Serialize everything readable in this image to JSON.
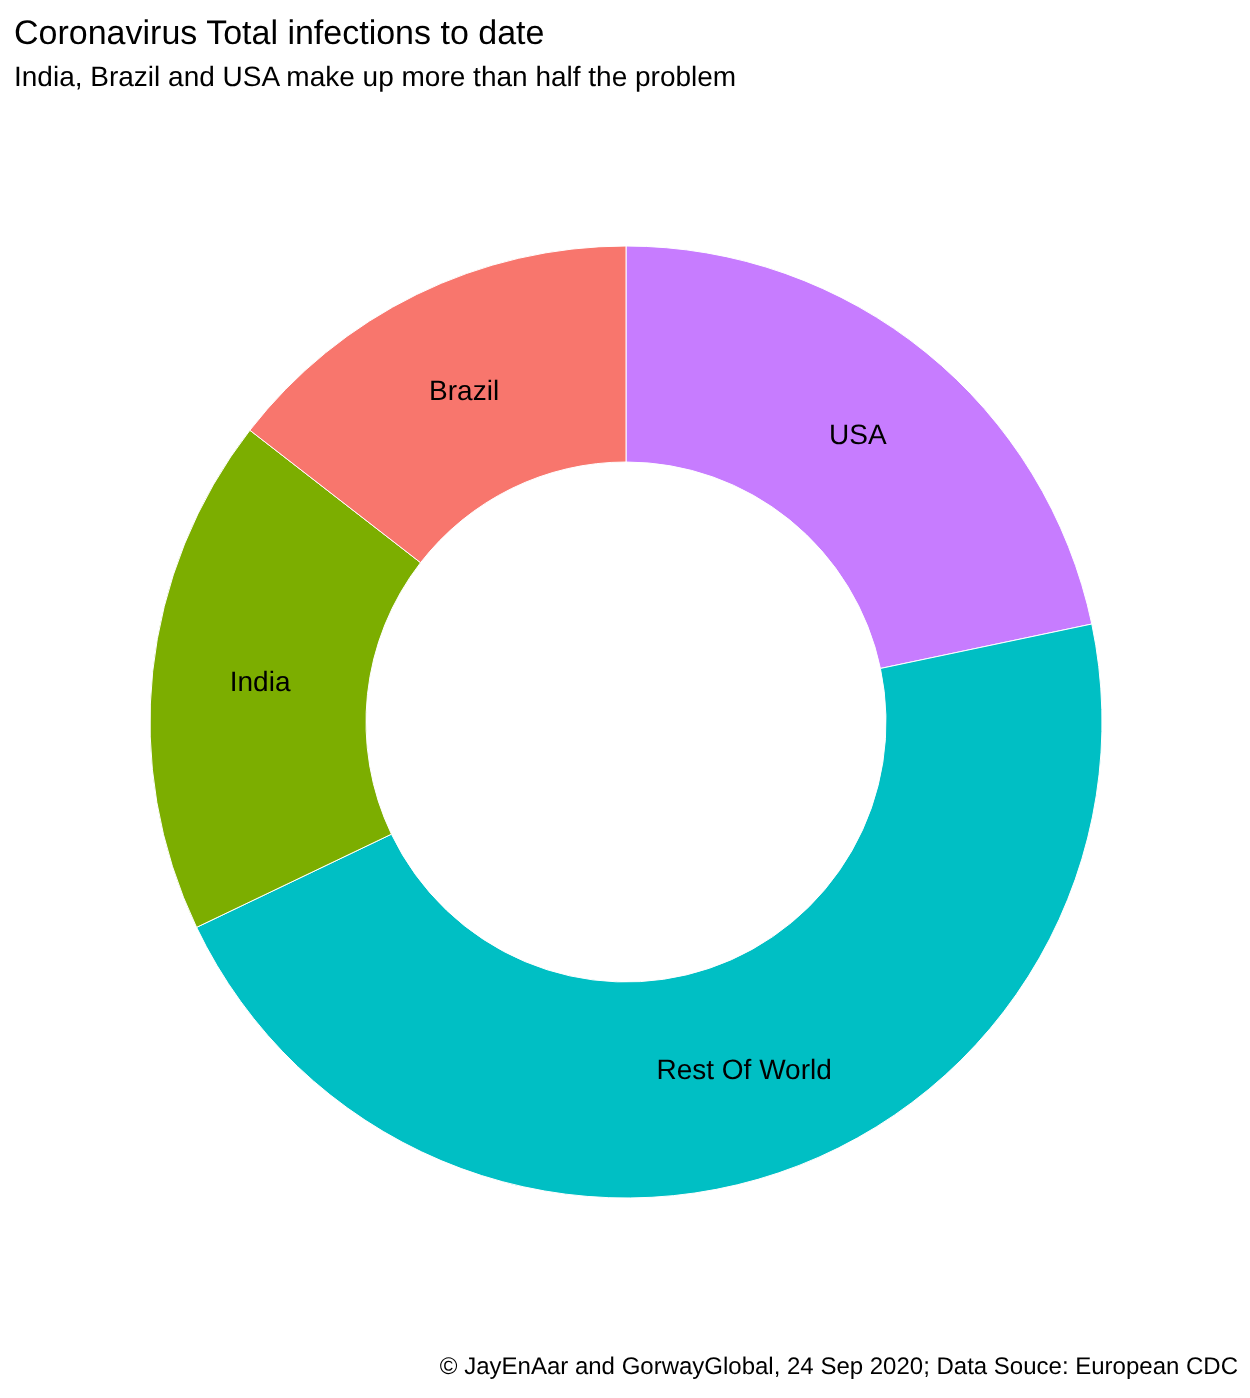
{
  "chart_data": {
    "type": "donut",
    "title": "Coronavirus Total infections to date",
    "subtitle": "India, Brazil and USA make up more than half the problem",
    "categories": [
      "USA",
      "Rest Of World",
      "India",
      "Brazil"
    ],
    "values": [
      21.7,
      46.2,
      17.6,
      14.5
    ],
    "colors": [
      "#c77cff",
      "#00bfc4",
      "#7cae00",
      "#f8766d"
    ],
    "annotations": [
      "© JayEnAar and GorwayGlobal, 24 Sep 2020; Data Souce: European CDC"
    ],
    "legend": false
  }
}
